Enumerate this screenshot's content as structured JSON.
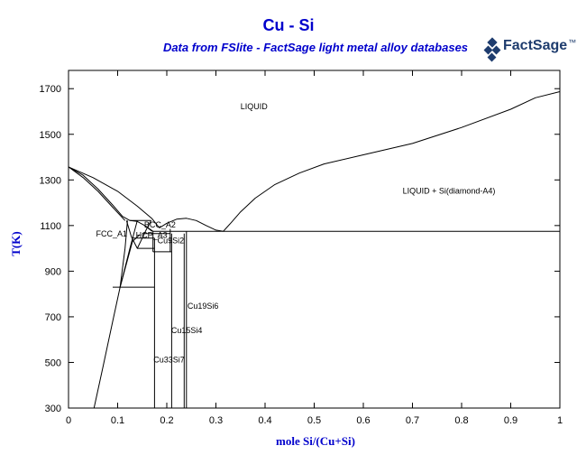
{
  "title": "Cu - Si",
  "subtitle": "Data from FSlite - FactSage light metal alloy databases",
  "logo": {
    "text": "FactSage",
    "sup": "™"
  },
  "axes": {
    "xlabel": "mole Si/(Cu+Si)",
    "ylabel": "T(K)",
    "xlim": [
      0,
      1
    ],
    "ylim": [
      300,
      1780
    ],
    "xticks": [
      {
        "v": 0,
        "label": "0"
      },
      {
        "v": 0.1,
        "label": "0.1"
      },
      {
        "v": 0.2,
        "label": "0.2"
      },
      {
        "v": 0.3,
        "label": "0.3"
      },
      {
        "v": 0.4,
        "label": "0.4"
      },
      {
        "v": 0.5,
        "label": "0.5"
      },
      {
        "v": 0.6,
        "label": "0.6"
      },
      {
        "v": 0.7,
        "label": "0.7"
      },
      {
        "v": 0.8,
        "label": "0.8"
      },
      {
        "v": 0.9,
        "label": "0.9"
      },
      {
        "v": 1,
        "label": "1"
      }
    ],
    "yticks": [
      {
        "v": 300,
        "label": "300"
      },
      {
        "v": 500,
        "label": "500"
      },
      {
        "v": 700,
        "label": "700"
      },
      {
        "v": 900,
        "label": "900"
      },
      {
        "v": 1100,
        "label": "1100"
      },
      {
        "v": 1300,
        "label": "1300"
      },
      {
        "v": 1500,
        "label": "1500"
      },
      {
        "v": 1700,
        "label": "1700"
      }
    ],
    "line_color": "#000000"
  },
  "chart_data": {
    "type": "phase-diagram",
    "labels": [
      {
        "text": "LIQUID",
        "x": 0.35,
        "y": 1610
      },
      {
        "text": "LIQUID + Si(diamond-A4)",
        "x": 0.68,
        "y": 1240
      },
      {
        "text": "FCC_A1",
        "x": 0.056,
        "y": 1052
      },
      {
        "text": "BCC_A2",
        "x": 0.154,
        "y": 1092
      },
      {
        "text": "HCP_A3",
        "x": 0.137,
        "y": 1045
      },
      {
        "text": "Cu9Si2",
        "x": 0.181,
        "y": 1023
      },
      {
        "text": "Cu19Si6",
        "x": 0.242,
        "y": 735
      },
      {
        "text": "Cu15Si4",
        "x": 0.209,
        "y": 628
      },
      {
        "text": "Cu33Si7",
        "x": 0.173,
        "y": 500
      }
    ],
    "curves": [
      {
        "name": "liquidus-cu-upper",
        "points": [
          [
            0,
            1357
          ],
          [
            0.03,
            1320
          ],
          [
            0.06,
            1260
          ],
          [
            0.09,
            1190
          ],
          [
            0.11,
            1140
          ],
          [
            0.125,
            1122
          ]
        ]
      },
      {
        "name": "solidus-cu",
        "points": [
          [
            0,
            1357
          ],
          [
            0.03,
            1310
          ],
          [
            0.06,
            1250
          ],
          [
            0.09,
            1180
          ],
          [
            0.115,
            1122
          ]
        ]
      },
      {
        "name": "liquidus-cu-lower",
        "points": [
          [
            0.125,
            1122
          ],
          [
            0.14,
            1118
          ],
          [
            0.155,
            1100
          ],
          [
            0.17,
            1075
          ]
        ]
      },
      {
        "name": "liquidus-dome",
        "points": [
          [
            0,
            1357
          ],
          [
            0.05,
            1310
          ],
          [
            0.1,
            1250
          ],
          [
            0.14,
            1185
          ],
          [
            0.17,
            1130
          ],
          [
            0.185,
            1090
          ]
        ]
      },
      {
        "name": "liquidus-mid",
        "points": [
          [
            0.185,
            1090
          ],
          [
            0.2,
            1110
          ],
          [
            0.22,
            1128
          ],
          [
            0.24,
            1132
          ],
          [
            0.26,
            1122
          ],
          [
            0.28,
            1100
          ],
          [
            0.3,
            1080
          ],
          [
            0.315,
            1075
          ]
        ]
      },
      {
        "name": "liquidus-si",
        "points": [
          [
            0.315,
            1075
          ],
          [
            0.33,
            1110
          ],
          [
            0.35,
            1160
          ],
          [
            0.38,
            1220
          ],
          [
            0.42,
            1280
          ],
          [
            0.47,
            1330
          ],
          [
            0.52,
            1370
          ],
          [
            0.6,
            1410
          ],
          [
            0.7,
            1460
          ],
          [
            0.8,
            1530
          ],
          [
            0.9,
            1610
          ],
          [
            0.95,
            1660
          ],
          [
            1,
            1687
          ]
        ]
      },
      {
        "name": "fcc-solvus",
        "points": [
          [
            0.052,
            300
          ],
          [
            0.07,
            480
          ],
          [
            0.09,
            680
          ],
          [
            0.105,
            830
          ],
          [
            0.115,
            1000
          ],
          [
            0.12,
            1122
          ]
        ]
      },
      {
        "name": "fcc-right",
        "points": [
          [
            0.105,
            830
          ],
          [
            0.125,
            1000
          ],
          [
            0.14,
            1122
          ]
        ]
      },
      {
        "name": "bcc-left",
        "points": [
          [
            0.118,
            1122
          ],
          [
            0.128,
            1050
          ],
          [
            0.14,
            1000
          ],
          [
            0.15,
            1045
          ],
          [
            0.16,
            1090
          ],
          [
            0.168,
            1122
          ]
        ]
      },
      {
        "name": "hcp-left",
        "points": [
          [
            0.105,
            830
          ],
          [
            0.13,
            1030
          ],
          [
            0.145,
            1060
          ]
        ]
      },
      {
        "name": "eutectic-si",
        "points": [
          [
            0.207,
            1075
          ],
          [
            1,
            1075
          ]
        ]
      },
      {
        "name": "eutectoid-830",
        "points": [
          [
            0.09,
            830
          ],
          [
            0.175,
            830
          ]
        ]
      },
      {
        "name": "bcc-iso",
        "points": [
          [
            0.125,
            1122
          ],
          [
            0.168,
            1122
          ]
        ]
      },
      {
        "name": "iso-1065",
        "points": [
          [
            0.15,
            1065
          ],
          [
            0.207,
            1065
          ]
        ]
      },
      {
        "name": "iso-1045",
        "points": [
          [
            0.13,
            1045
          ],
          [
            0.175,
            1045
          ]
        ]
      },
      {
        "name": "iso-1000",
        "points": [
          [
            0.14,
            1000
          ],
          [
            0.175,
            1000
          ]
        ]
      },
      {
        "name": "iso-985",
        "points": [
          [
            0.172,
            985
          ],
          [
            0.21,
            985
          ]
        ]
      },
      {
        "name": "iso-1075-left",
        "points": [
          [
            0.172,
            1075
          ],
          [
            0.207,
            1075
          ]
        ]
      },
      {
        "name": "cu33si7",
        "points": [
          [
            0.175,
            300
          ],
          [
            0.175,
            1045
          ]
        ]
      },
      {
        "name": "cu15si4-left",
        "points": [
          [
            0.21,
            300
          ],
          [
            0.21,
            1065
          ]
        ]
      },
      {
        "name": "cu19si6-left",
        "points": [
          [
            0.24,
            300
          ],
          [
            0.24,
            1075
          ]
        ]
      },
      {
        "name": "cu15si4-right",
        "points": [
          [
            0.2355,
            300
          ],
          [
            0.2355,
            1065
          ]
        ]
      },
      {
        "name": "cu9si2",
        "points": [
          [
            0.207,
            985
          ],
          [
            0.207,
            1085
          ]
        ]
      },
      {
        "name": "bcc-hcp-side",
        "points": [
          [
            0.155,
            1100
          ],
          [
            0.172,
            1075
          ],
          [
            0.172,
            985
          ]
        ]
      }
    ]
  }
}
